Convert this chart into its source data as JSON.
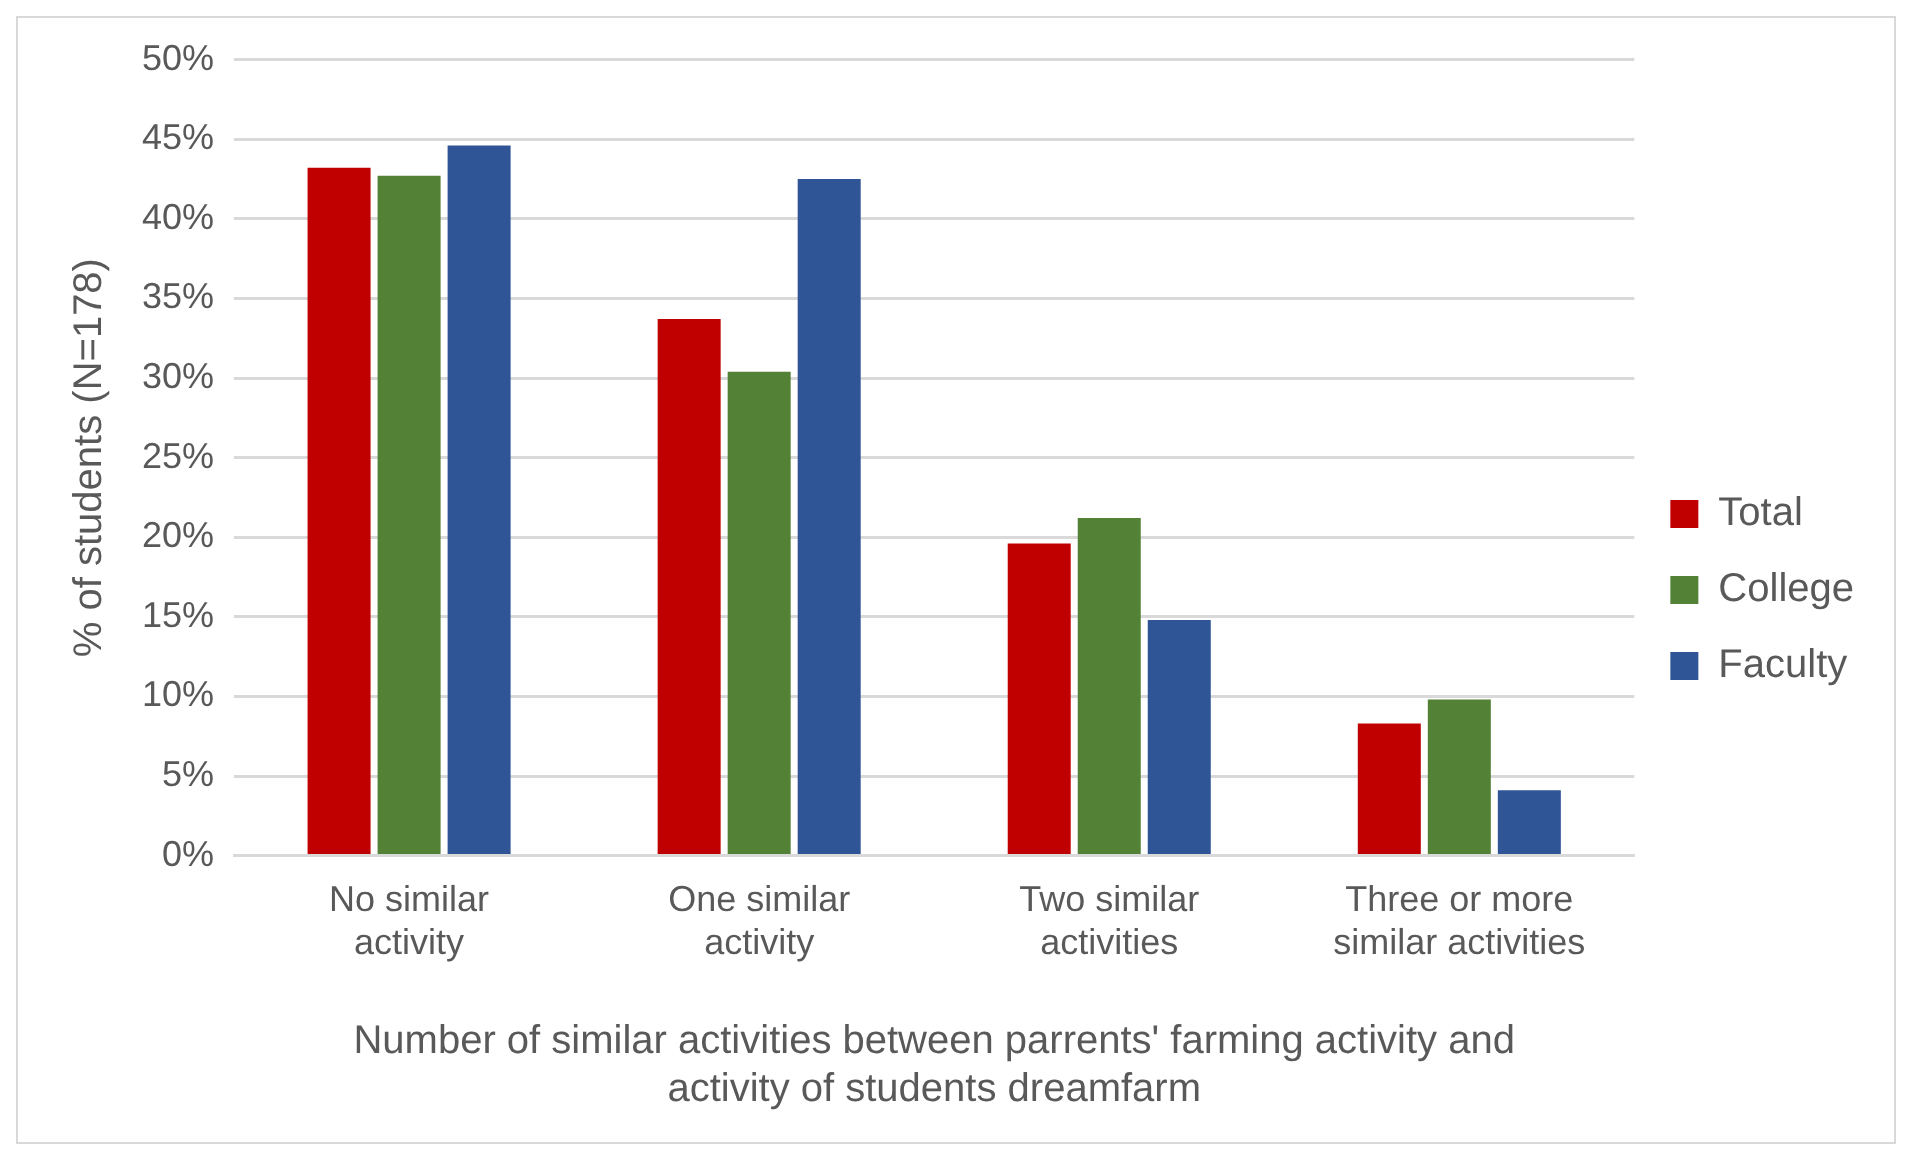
{
  "chart_data": {
    "type": "bar",
    "xlabel": "Number of similar activities between parrents' farming activity and activity of students dreamfarm",
    "ylabel": "% of students (N=178)",
    "categories": [
      "No similar activity",
      "One similar activity",
      "Two similar activities",
      "Three or more similar activities"
    ],
    "series": [
      {
        "name": "Total",
        "color": "#c00000",
        "values": [
          43.2,
          33.7,
          19.6,
          8.3
        ]
      },
      {
        "name": "College",
        "color": "#538135",
        "values": [
          42.7,
          30.4,
          21.2,
          9.8
        ]
      },
      {
        "name": "Faculty",
        "color": "#2f5597",
        "values": [
          44.6,
          42.5,
          14.8,
          4.1
        ]
      }
    ],
    "ylim": [
      0,
      50
    ],
    "yticks": [
      {
        "value": 0,
        "label": "0%"
      },
      {
        "value": 5,
        "label": "5%"
      },
      {
        "value": 10,
        "label": "10%"
      },
      {
        "value": 15,
        "label": "15%"
      },
      {
        "value": 20,
        "label": "20%"
      },
      {
        "value": 25,
        "label": "25%"
      },
      {
        "value": 30,
        "label": "30%"
      },
      {
        "value": 35,
        "label": "35%"
      },
      {
        "value": 40,
        "label": "40%"
      },
      {
        "value": 45,
        "label": "45%"
      },
      {
        "value": 50,
        "label": "50%"
      }
    ],
    "grid": "y",
    "legend": "right"
  }
}
